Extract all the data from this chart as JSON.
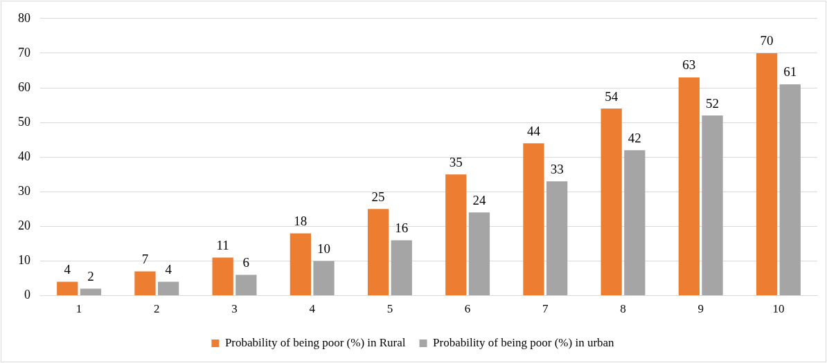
{
  "chart_data": {
    "type": "bar",
    "categories": [
      "1",
      "2",
      "3",
      "4",
      "5",
      "6",
      "7",
      "8",
      "9",
      "10"
    ],
    "series": [
      {
        "name": "Probability of being poor (%) in Rural",
        "color": "#ed7d31",
        "values": [
          4,
          7,
          11,
          18,
          25,
          35,
          44,
          54,
          63,
          70
        ]
      },
      {
        "name": "Probability of being poor (%) in urban",
        "color": "#a5a5a5",
        "values": [
          2,
          4,
          6,
          10,
          16,
          24,
          33,
          42,
          52,
          61
        ]
      }
    ],
    "ylim": [
      0,
      80
    ],
    "yticks": [
      0,
      10,
      20,
      30,
      40,
      50,
      60,
      70,
      80
    ],
    "grid": "y",
    "legend": "bottom",
    "data_labels": true
  }
}
